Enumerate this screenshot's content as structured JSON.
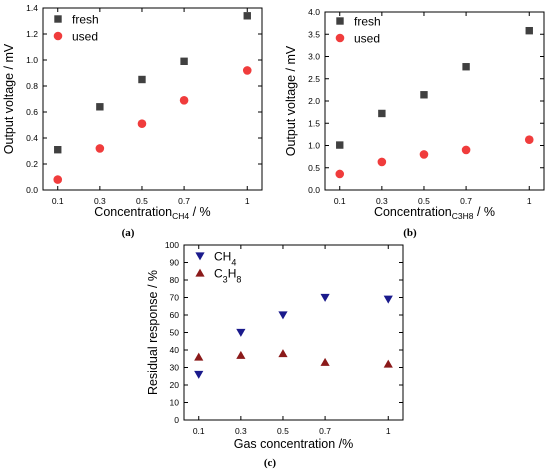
{
  "chart_data": [
    {
      "type": "scatter",
      "panel_label": "(a)",
      "categories": [
        "0.1",
        "0.3",
        "0.5",
        "0.7",
        "1"
      ],
      "ylim": [
        0,
        1.4
      ],
      "yticks": [
        "0.0",
        "0.2",
        "0.4",
        "0.6",
        "0.8",
        "1.0",
        "1.2",
        "1.4"
      ],
      "ylabel": "Output voltage / mV",
      "xlabel_main": "Concentration",
      "xlabel_sub": "CH4",
      "xlabel_tail": " / %",
      "legend_position": "top-left",
      "series": [
        {
          "name": "fresh",
          "marker": "square",
          "color": "#404040",
          "values": [
            0.31,
            0.64,
            0.85,
            0.99,
            1.34
          ]
        },
        {
          "name": "used",
          "marker": "circle",
          "color": "#f03c3c",
          "values": [
            0.08,
            0.32,
            0.51,
            0.69,
            0.92
          ]
        }
      ]
    },
    {
      "type": "scatter",
      "panel_label": "(b)",
      "categories": [
        "0.1",
        "0.3",
        "0.5",
        "0.7",
        "1"
      ],
      "ylim": [
        0,
        4.0
      ],
      "yticks": [
        "0.0",
        "0.5",
        "1.0",
        "1.5",
        "2.0",
        "2.5",
        "3.0",
        "3.5",
        "4.0"
      ],
      "ylabel": "Output voltage / mV",
      "xlabel_main": "Concentration",
      "xlabel_sub": "C3H8",
      "xlabel_tail": " / %",
      "legend_position": "top-left",
      "series": [
        {
          "name": "fresh",
          "marker": "square",
          "color": "#404040",
          "values": [
            1.01,
            1.72,
            2.14,
            2.77,
            3.58
          ]
        },
        {
          "name": "used",
          "marker": "circle",
          "color": "#f03c3c",
          "values": [
            0.36,
            0.63,
            0.8,
            0.9,
            1.13
          ]
        }
      ]
    },
    {
      "type": "scatter",
      "panel_label": "(c)",
      "categories": [
        "0.1",
        "0.3",
        "0.5",
        "0.7",
        "1"
      ],
      "ylim": [
        0,
        100
      ],
      "yticks": [
        "0",
        "10",
        "20",
        "30",
        "40",
        "50",
        "60",
        "70",
        "80",
        "90",
        "100"
      ],
      "ylabel": "Residual response / %",
      "xlabel_main": "Gas concentration /%",
      "xlabel_sub": "",
      "xlabel_tail": "",
      "legend_position": "top-left",
      "series": [
        {
          "name": "CH4",
          "marker": "triangle-down",
          "color": "#1a1a8c",
          "values": [
            26,
            50,
            60,
            70,
            69
          ]
        },
        {
          "name": "C3H8",
          "marker": "triangle-up",
          "color": "#8b1a1a",
          "values": [
            36,
            37,
            38,
            33,
            32
          ]
        }
      ]
    }
  ]
}
